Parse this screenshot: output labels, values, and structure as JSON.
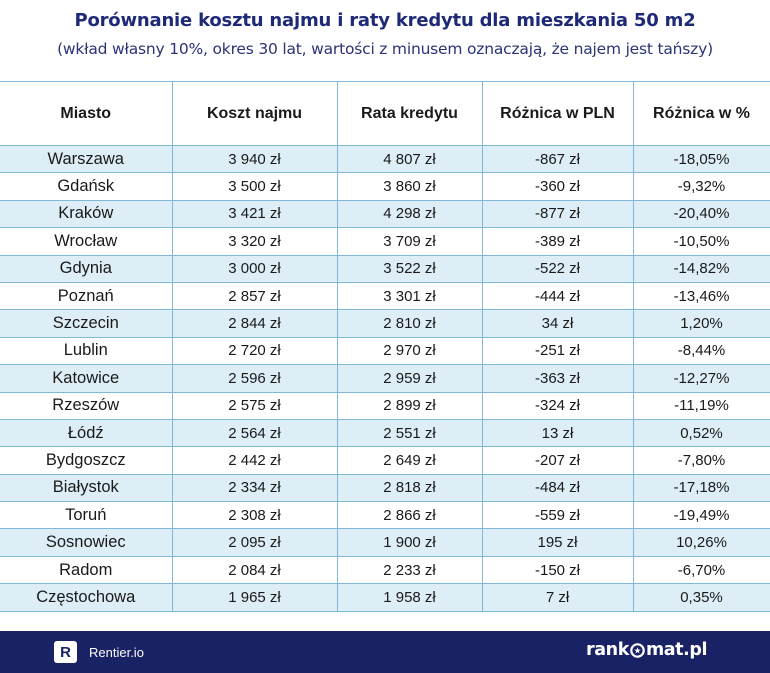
{
  "header": {
    "title": "Porównanie kosztu najmu i raty kredytu dla mieszkania 50 m2",
    "subtitle": "(wkład własny 10%, okres 30 lat, wartości z minusem oznaczają, że najem jest tańszy)"
  },
  "table": {
    "columns": [
      "Miasto",
      "Koszt najmu",
      "Rata kredytu",
      "Różnica w PLN",
      "Różnica w %"
    ],
    "rows": [
      [
        "Warszawa",
        "3 940 zł",
        "4 807 zł",
        "-867 zł",
        "-18,05%"
      ],
      [
        "Gdańsk",
        "3 500 zł",
        "3 860 zł",
        "-360 zł",
        "-9,32%"
      ],
      [
        "Kraków",
        "3 421 zł",
        "4 298 zł",
        "-877 zł",
        "-20,40%"
      ],
      [
        "Wrocław",
        "3 320 zł",
        "3 709 zł",
        "-389 zł",
        "-10,50%"
      ],
      [
        "Gdynia",
        "3 000 zł",
        "3 522 zł",
        "-522 zł",
        "-14,82%"
      ],
      [
        "Poznań",
        "2 857 zł",
        "3 301 zł",
        "-444 zł",
        "-13,46%"
      ],
      [
        "Szczecin",
        "2 844 zł",
        "2 810 zł",
        "34 zł",
        "1,20%"
      ],
      [
        "Lublin",
        "2 720 zł",
        "2 970 zł",
        "-251 zł",
        "-8,44%"
      ],
      [
        "Katowice",
        "2 596 zł",
        "2 959 zł",
        "-363 zł",
        "-12,27%"
      ],
      [
        "Rzeszów",
        "2 575 zł",
        "2 899 zł",
        "-324 zł",
        "-11,19%"
      ],
      [
        "Łódź",
        "2 564 zł",
        "2 551 zł",
        "13 zł",
        "0,52%"
      ],
      [
        "Bydgoszcz",
        "2 442 zł",
        "2 649 zł",
        "-207 zł",
        "-7,80%"
      ],
      [
        "Białystok",
        "2 334 zł",
        "2 818 zł",
        "-484 zł",
        "-17,18%"
      ],
      [
        "Toruń",
        "2 308 zł",
        "2 866 zł",
        "-559 zł",
        "-19,49%"
      ],
      [
        "Sosnowiec",
        "2 095 zł",
        "1 900 zł",
        "195 zł",
        "10,26%"
      ],
      [
        "Radom",
        "2 084 zł",
        "2 233 zł",
        "-150 zł",
        "-6,70%"
      ],
      [
        "Częstochowa",
        "1 965 zł",
        "1 958 zł",
        "7 zł",
        "0,35%"
      ]
    ]
  },
  "footer": {
    "left_logo_letter": "R",
    "left_brand": "Rentier.io",
    "right_brand_part1": "rank",
    "right_brand_part2": "mat.pl",
    "right_brand_icon": "star-in-circle-icon"
  },
  "colors": {
    "title": "#1e2a78",
    "row_stripe": "#ddeef7",
    "grid_lines": "#7fb8d9",
    "footer_bg": "#1a2266"
  }
}
